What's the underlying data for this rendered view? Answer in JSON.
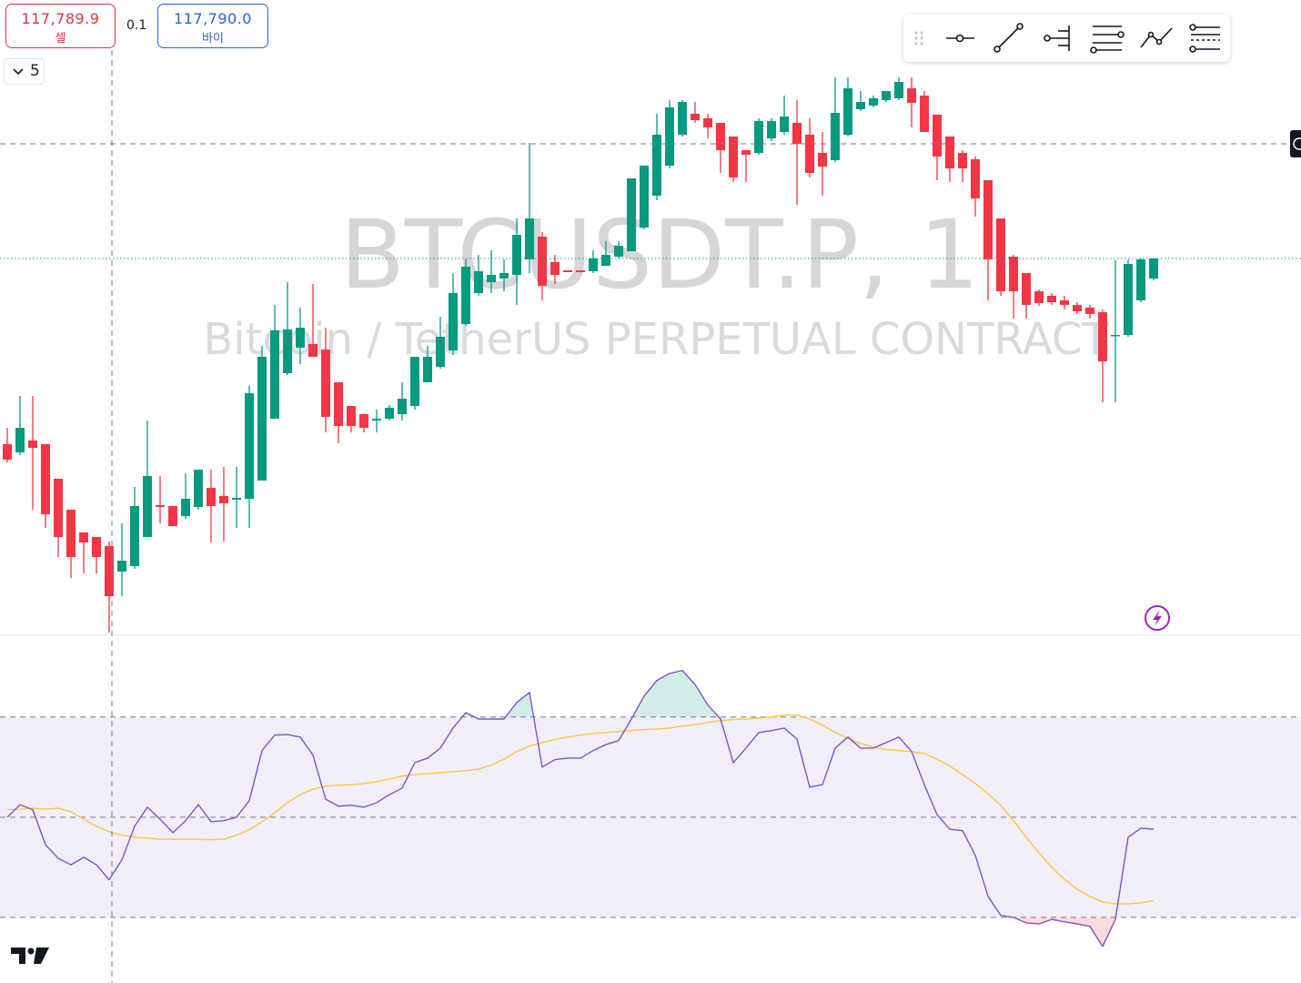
{
  "order_panel": {
    "sell_price": "117,789.9",
    "sell_label": "셀",
    "quantity": 0.1,
    "buy_price": "117,790.0",
    "buy_label": "바이"
  },
  "interval_selector": 5,
  "watermark": {
    "symbol": "BTCUSDT.P, 1",
    "description": "Bitcoin / TetherUS PERPETUAL CONTRACT"
  },
  "chart_data": [
    {
      "type": "candlestick",
      "up_color": "#089981",
      "down_color": "#f23645",
      "ylim": [
        117748.3,
        117818
      ],
      "open": [
        117769.2,
        117768.3,
        117769.6,
        117769.2,
        117765.4,
        117762,
        117759.5,
        117759,
        117758,
        117755.2,
        117755.8,
        117759,
        117762.5,
        117762.4,
        117761.3,
        117762.3,
        117764.4,
        117763.5,
        117763.1,
        117763.2,
        117765.2,
        117772,
        117777,
        117779.8,
        117780.2,
        117779.6,
        117776,
        117773.4,
        117772.5,
        117771.8,
        117772,
        117772.5,
        117773.4,
        117776,
        117777.7,
        117779.5,
        117782.4,
        117785.8,
        117787,
        117787.4,
        117787.8,
        117789.5,
        117792,
        117789.2,
        117788.3,
        117788.3,
        117788.2,
        117788.8,
        117789.8,
        117790.4,
        117793,
        117796.5,
        117799.8,
        117803.2,
        117805.5,
        117805,
        117804.5,
        117803,
        117801.5,
        117801.2,
        117802.8,
        117803.5,
        117804.5,
        117803.2,
        117801.2,
        117800.4,
        117803.2,
        117806,
        117806.4,
        117807,
        117807.2,
        117808.3,
        117807.5,
        117805.4,
        117803,
        117801.2,
        117800.5,
        117798.2,
        117794,
        117789.8,
        117788,
        117786,
        117785.5,
        117785,
        117784.5,
        117784.2,
        117783.7,
        117781.1,
        117781.2,
        117785,
        117787.4
      ],
      "high": [
        117771,
        117774.5,
        117774.5,
        117769.2,
        117765.4,
        117762,
        117759.5,
        117759,
        117758.5,
        117760.5,
        117764.5,
        117771.8,
        117765.7,
        117762.4,
        117766,
        117766.4,
        117766.4,
        117766.7,
        117766.7,
        117775.6,
        117780,
        117784.5,
        117787,
        117784.2,
        117786.8,
        117782,
        117776,
        117773.4,
        117772.5,
        117773,
        117773.5,
        117776,
        117778.8,
        117780,
        117783.2,
        117788,
        117789.5,
        117790,
        117790.5,
        117789.5,
        117794,
        117802.3,
        117792.5,
        117790,
        117788.3,
        117788.3,
        117790.5,
        117791.5,
        117791.5,
        117798.4,
        117799.8,
        117805.5,
        117807,
        117807,
        117806.8,
        117805.5,
        117804.5,
        117803,
        117801.5,
        117805,
        117805,
        117807.5,
        117807,
        117805,
        117803.5,
        117809.5,
        117809.5,
        117808,
        117807.5,
        117808,
        117809.5,
        117809.5,
        117808,
        117805.4,
        117803,
        117801.5,
        117800.8,
        117798.2,
        117794,
        117790,
        117788,
        117786.2,
        117785.8,
        117785.5,
        117784.8,
        117784.5,
        117784,
        117789.4,
        117789.5,
        117789.6,
        117789.6
      ],
      "low": [
        117767.2,
        117768,
        117762,
        117760,
        117756.8,
        117754.5,
        117755,
        117755,
        117748.5,
        117752.5,
        117755.5,
        117759,
        117760.5,
        117760.2,
        117761,
        117762,
        117758.4,
        117758.5,
        117760,
        117760,
        117765.2,
        117772,
        117776.8,
        117778,
        117778.8,
        117770.5,
        117769.3,
        117770.5,
        117770.5,
        117770.5,
        117771.8,
        117771.8,
        117773,
        117776,
        117777.5,
        117779,
        117782.2,
        117785.5,
        117785.8,
        117786,
        117784.5,
        117788,
        117785,
        117786.8,
        117788.1,
        117788.1,
        117788,
        117788.8,
        117789.6,
        117790.4,
        117792.8,
        117796,
        117799.5,
        117803,
        117804.5,
        117802.8,
        117799,
        117798,
        117798,
        117801,
        117802.5,
        117803.2,
        117795.5,
        117798.5,
        117796.5,
        117800.2,
        117803,
        117805.8,
        117806.2,
        117806.8,
        117807,
        117804,
        117803.5,
        117798.2,
        117798,
        117798,
        117794.2,
        117785,
        117785.5,
        117783,
        117783,
        117784.4,
        117784.5,
        117784,
        117783.5,
        117783,
        117773.8,
        117773.8,
        117781,
        117784.8,
        117787.2
      ],
      "close": [
        117767.5,
        117771,
        117768.8,
        117761.5,
        117759,
        117756.8,
        117758.4,
        117756.8,
        117752.5,
        117756.4,
        117762.4,
        117765.7,
        117762.3,
        117760.2,
        117763.2,
        117766.4,
        117762.4,
        117762.7,
        117763.3,
        117774.8,
        117778.8,
        117781.7,
        117781.8,
        117782,
        117778.8,
        117772.2,
        117771.2,
        117771.2,
        117771,
        117772,
        117773.2,
        117774.2,
        117778.8,
        117778.8,
        117781,
        117785.8,
        117788.7,
        117788.2,
        117787.8,
        117788,
        117792.2,
        117794,
        117786.6,
        117787.8,
        117788.1,
        117788.1,
        117789.6,
        117790,
        117791,
        117798.4,
        117799.8,
        117803.2,
        117806.2,
        117806.8,
        117804.8,
        117804,
        117801.5,
        117798.5,
        117801,
        117804.7,
        117804.7,
        117805.2,
        117802.2,
        117799,
        117799.7,
        117805.6,
        117808.3,
        117806.8,
        117807.2,
        117808,
        117809,
        117806.7,
        117803.5,
        117800.8,
        117799.5,
        117799.5,
        117796.2,
        117789.5,
        117786,
        117786,
        117784.5,
        117784.7,
        117784.8,
        117784.5,
        117783.8,
        117783.5,
        117778.3,
        117781.2,
        117789,
        117789.5,
        117789.6
      ]
    },
    {
      "type": "line",
      "ylim": [
        16.9,
        86.5
      ],
      "levels": [
        70,
        50,
        30
      ],
      "band_color": "#7e57c2",
      "overbought_fill": "#089981",
      "oversold_fill": "#f23645",
      "series": [
        {
          "color": "#7e57c2",
          "values": [
            50,
            52.5,
            51.5,
            44.5,
            41.8,
            40.5,
            42,
            40.5,
            37.5,
            41.5,
            48.2,
            52,
            49.6,
            46.9,
            49.3,
            52.5,
            49.1,
            49.3,
            50,
            53.3,
            63.3,
            66.4,
            66.5,
            66,
            62.4,
            53.6,
            52.2,
            52.4,
            52,
            52.9,
            54.5,
            55.8,
            60.9,
            61.8,
            63.8,
            67.8,
            70.9,
            69.6,
            69.6,
            69.6,
            72.9,
            74.9,
            60,
            61.5,
            61.8,
            61.8,
            63.3,
            64.5,
            65.3,
            69.6,
            74.2,
            77.3,
            78.7,
            79.3,
            76.5,
            72.4,
            69.6,
            60.9,
            63.8,
            66.9,
            67.3,
            67.8,
            65.6,
            56,
            56.5,
            63.8,
            66,
            63.8,
            63.8,
            64.9,
            66,
            63.1,
            56.5,
            50.5,
            47.6,
            47.3,
            42.4,
            34.2,
            30.4,
            30,
            28.9,
            28.7,
            29.6,
            29.1,
            28.7,
            28.2,
            24.2,
            29.6,
            46,
            47.8,
            47.6
          ]
        },
        {
          "color": "#f7c843",
          "values": [
            51.5,
            51.6,
            51.8,
            51.6,
            51.8,
            51.1,
            49.6,
            48.2,
            47.1,
            46.4,
            46,
            45.8,
            45.6,
            45.6,
            45.6,
            45.6,
            45.5,
            45.6,
            46.4,
            47.5,
            49.1,
            50.9,
            52.9,
            54.5,
            55.6,
            56.2,
            56.4,
            56.5,
            56.7,
            57.1,
            57.6,
            58.2,
            58.5,
            58.7,
            58.9,
            59.1,
            59.3,
            59.6,
            60.4,
            61.6,
            63.1,
            64.2,
            64.9,
            65.5,
            66,
            66.4,
            66.7,
            66.9,
            67.1,
            67.3,
            67.5,
            67.6,
            67.8,
            68.2,
            68.5,
            68.9,
            69.3,
            69.5,
            69.6,
            69.8,
            70,
            70.4,
            70.4,
            69.6,
            68.4,
            66.9,
            65.8,
            64.7,
            64,
            63.5,
            63.3,
            63.1,
            62.7,
            61.6,
            60.2,
            58.5,
            56.7,
            54.7,
            52.4,
            49.3,
            46,
            42.9,
            40,
            37.6,
            35.6,
            34.2,
            33.1,
            32.7,
            32.7,
            32.9,
            33.3
          ]
        }
      ]
    }
  ]
}
